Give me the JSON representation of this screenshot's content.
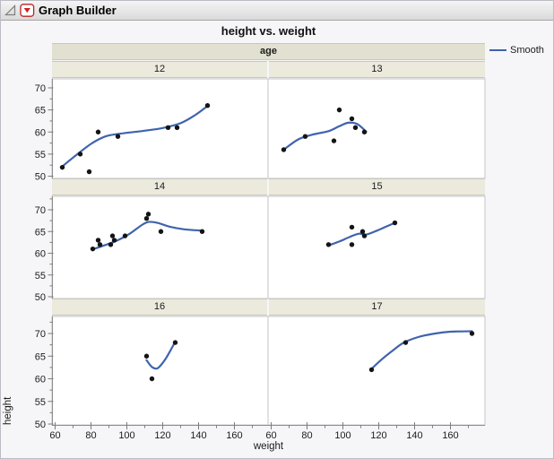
{
  "window": {
    "title": "Graph Builder"
  },
  "icons": {
    "disclosure": "open-disclosure-triangle",
    "menu": "red-triangle-menu"
  },
  "colors": {
    "smooth_line": "#3f63ae",
    "point": "#141414",
    "panel_bg": "#ffffff",
    "panel_border": "#c6c6c6",
    "axis_line": "#8e8e8e",
    "tick": "#7c7c7c",
    "band_age_bg": "#e2e0d0",
    "band_label_bg": "#eceadd",
    "text": "#1b1b1b"
  },
  "chart_data": {
    "type": "scatter",
    "title": "height vs. weight",
    "xlabel": "weight",
    "ylabel": "height",
    "facet_by": "age",
    "legend": [
      "Smooth"
    ],
    "x_ticks": [
      60,
      80,
      100,
      120,
      140,
      160
    ],
    "y_ticks": [
      50,
      55,
      60,
      65,
      70
    ],
    "x_range": [
      59,
      179
    ],
    "y_range": [
      49.5,
      73
    ],
    "grid": false,
    "legend_position": "right",
    "facets": [
      {
        "label": "12",
        "row": 0,
        "col": 0,
        "points": [
          [
            64,
            52
          ],
          [
            74,
            55
          ],
          [
            79,
            51
          ],
          [
            84,
            60
          ],
          [
            95,
            59
          ],
          [
            123,
            61
          ],
          [
            128,
            61
          ],
          [
            145,
            66
          ]
        ],
        "smooth": [
          [
            64,
            52.2
          ],
          [
            70,
            54.2
          ],
          [
            80,
            57.3
          ],
          [
            88,
            59.0
          ],
          [
            96,
            59.6
          ],
          [
            108,
            60.2
          ],
          [
            120,
            60.9
          ],
          [
            130,
            62.0
          ],
          [
            138,
            63.8
          ],
          [
            145,
            65.9
          ]
        ]
      },
      {
        "label": "13",
        "row": 0,
        "col": 1,
        "points": [
          [
            67,
            56
          ],
          [
            79,
            59
          ],
          [
            95,
            58
          ],
          [
            98,
            65
          ],
          [
            105,
            63
          ],
          [
            107,
            61
          ],
          [
            112,
            60
          ]
        ],
        "smooth": [
          [
            67,
            56.0
          ],
          [
            75,
            58.3
          ],
          [
            83,
            59.4
          ],
          [
            92,
            60.2
          ],
          [
            98,
            61.3
          ],
          [
            103,
            62.1
          ],
          [
            108,
            61.8
          ],
          [
            113,
            60.1
          ]
        ]
      },
      {
        "label": "14",
        "row": 1,
        "col": 0,
        "points": [
          [
            81,
            61
          ],
          [
            84,
            63
          ],
          [
            85,
            62
          ],
          [
            91,
            62
          ],
          [
            92,
            64
          ],
          [
            93,
            63
          ],
          [
            99,
            64
          ],
          [
            111,
            68
          ],
          [
            112,
            69
          ],
          [
            119,
            65
          ],
          [
            142,
            65
          ]
        ],
        "smooth": [
          [
            81,
            60.9
          ],
          [
            88,
            61.9
          ],
          [
            95,
            63.0
          ],
          [
            102,
            64.6
          ],
          [
            108,
            66.4
          ],
          [
            112,
            67.2
          ],
          [
            117,
            67.0
          ],
          [
            124,
            66.1
          ],
          [
            132,
            65.5
          ],
          [
            142,
            65.2
          ]
        ]
      },
      {
        "label": "15",
        "row": 1,
        "col": 1,
        "points": [
          [
            92,
            62
          ],
          [
            105,
            66
          ],
          [
            105,
            62
          ],
          [
            111,
            65
          ],
          [
            112,
            64
          ],
          [
            129,
            67
          ]
        ],
        "smooth": [
          [
            92,
            61.8
          ],
          [
            98,
            62.7
          ],
          [
            104,
            63.8
          ],
          [
            109,
            64.5
          ],
          [
            113,
            64.3
          ],
          [
            119,
            65.2
          ],
          [
            124,
            66.1
          ],
          [
            129,
            67.0
          ]
        ]
      },
      {
        "label": "16",
        "row": 2,
        "col": 0,
        "points": [
          [
            111,
            65
          ],
          [
            114,
            60
          ],
          [
            127,
            68
          ]
        ],
        "smooth": [
          [
            111,
            64.1
          ],
          [
            114,
            62.6
          ],
          [
            117,
            62.3
          ],
          [
            120,
            63.5
          ],
          [
            123,
            65.3
          ],
          [
            127,
            68.2
          ]
        ]
      },
      {
        "label": "17",
        "row": 2,
        "col": 1,
        "points": [
          [
            116,
            62
          ],
          [
            135,
            68
          ],
          [
            172,
            70
          ]
        ],
        "smooth": [
          [
            116,
            62.2
          ],
          [
            122,
            64.4
          ],
          [
            128,
            66.3
          ],
          [
            134,
            68.0
          ],
          [
            142,
            69.2
          ],
          [
            150,
            69.9
          ],
          [
            160,
            70.4
          ],
          [
            172,
            70.5
          ]
        ]
      }
    ]
  }
}
